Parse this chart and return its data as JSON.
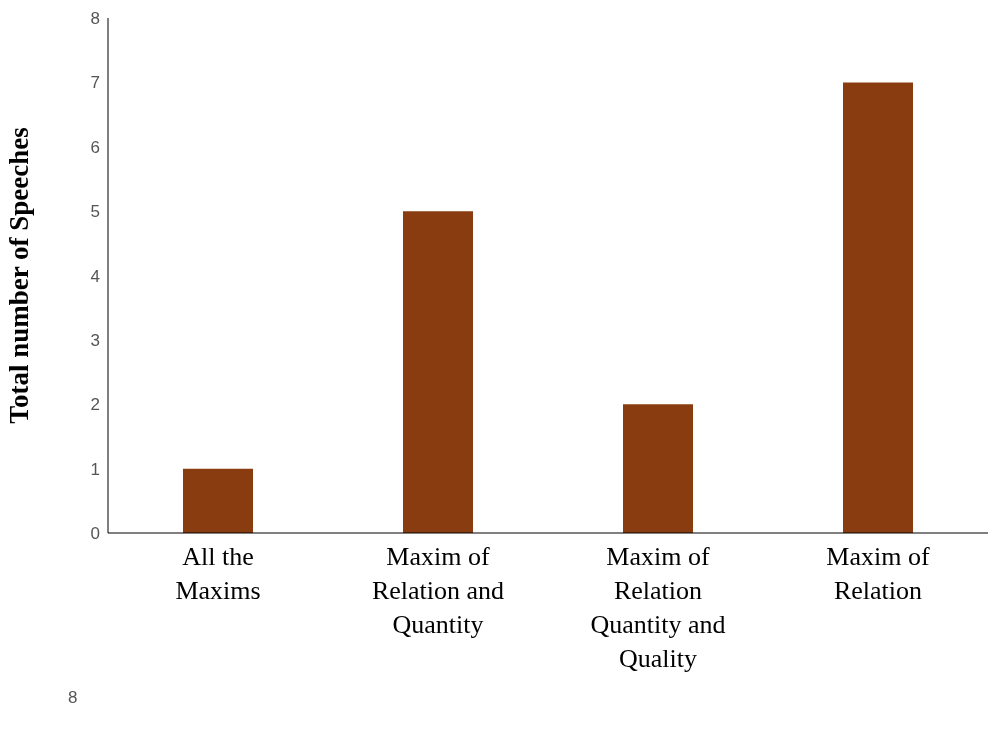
{
  "chart_data": {
    "type": "bar",
    "ylabel": "Total number of Speeches",
    "categories": [
      "All the Maxims",
      "Maxim of Relation and Quantity",
      "Maxim of Relation Quantity and Quality",
      "Maxim of Relation"
    ],
    "values": [
      1,
      5,
      2,
      7
    ],
    "color": "#883c0f",
    "ylim": [
      0,
      8
    ],
    "yticks": [
      0,
      1,
      2,
      3,
      4,
      5,
      6,
      7,
      8
    ],
    "grid": false,
    "legend": false,
    "annotations": [
      "8"
    ]
  }
}
